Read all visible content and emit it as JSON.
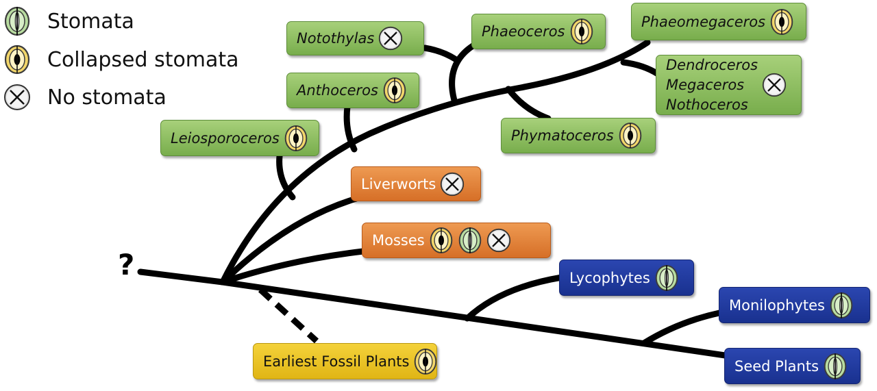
{
  "legend": [
    {
      "icon": "stomata",
      "label": "Stomata"
    },
    {
      "icon": "collapsed",
      "label": "Collapsed stomata"
    },
    {
      "icon": "none",
      "label": "No stomata"
    }
  ],
  "root_mark": "?",
  "taxa": {
    "notothylas": {
      "label": "Notothylas",
      "icons": [
        "none"
      ]
    },
    "phaeoceros": {
      "label": "Phaeoceros",
      "icons": [
        "collapsed"
      ]
    },
    "phaeomegaceros": {
      "label": "Phaeomegaceros",
      "icons": [
        "collapsed"
      ]
    },
    "dendroceros_group": {
      "lines": [
        "Dendroceros",
        "Megaceros",
        "Nothoceros"
      ],
      "icons": [
        "none"
      ]
    },
    "anthoceros": {
      "label": "Anthoceros",
      "icons": [
        "collapsed"
      ]
    },
    "phymatoceros": {
      "label": "Phymatoceros",
      "icons": [
        "collapsed"
      ]
    },
    "leiosporoceros": {
      "label": "Leiosporoceros",
      "icons": [
        "collapsed"
      ]
    },
    "liverworts": {
      "label": "Liverworts",
      "icons": [
        "none"
      ]
    },
    "mosses": {
      "label": "Mosses",
      "icons": [
        "collapsed",
        "stomata",
        "none"
      ]
    },
    "lycophytes": {
      "label": "Lycophytes",
      "icons": [
        "stomata"
      ]
    },
    "monilophytes": {
      "label": "Monilophytes",
      "icons": [
        "stomata"
      ]
    },
    "seed_plants": {
      "label": "Seed Plants",
      "icons": [
        "stomata"
      ]
    },
    "earliest_fossil": {
      "label": "Earliest Fossil Plants",
      "icons": [
        "collapsed"
      ]
    }
  },
  "colors": {
    "hornwort_box": "#8cbf5f",
    "bryophyte_box": "#e5823a",
    "vascular_box": "#1f3a9e",
    "fossil_box": "#ecc424",
    "branch": "#000000"
  }
}
